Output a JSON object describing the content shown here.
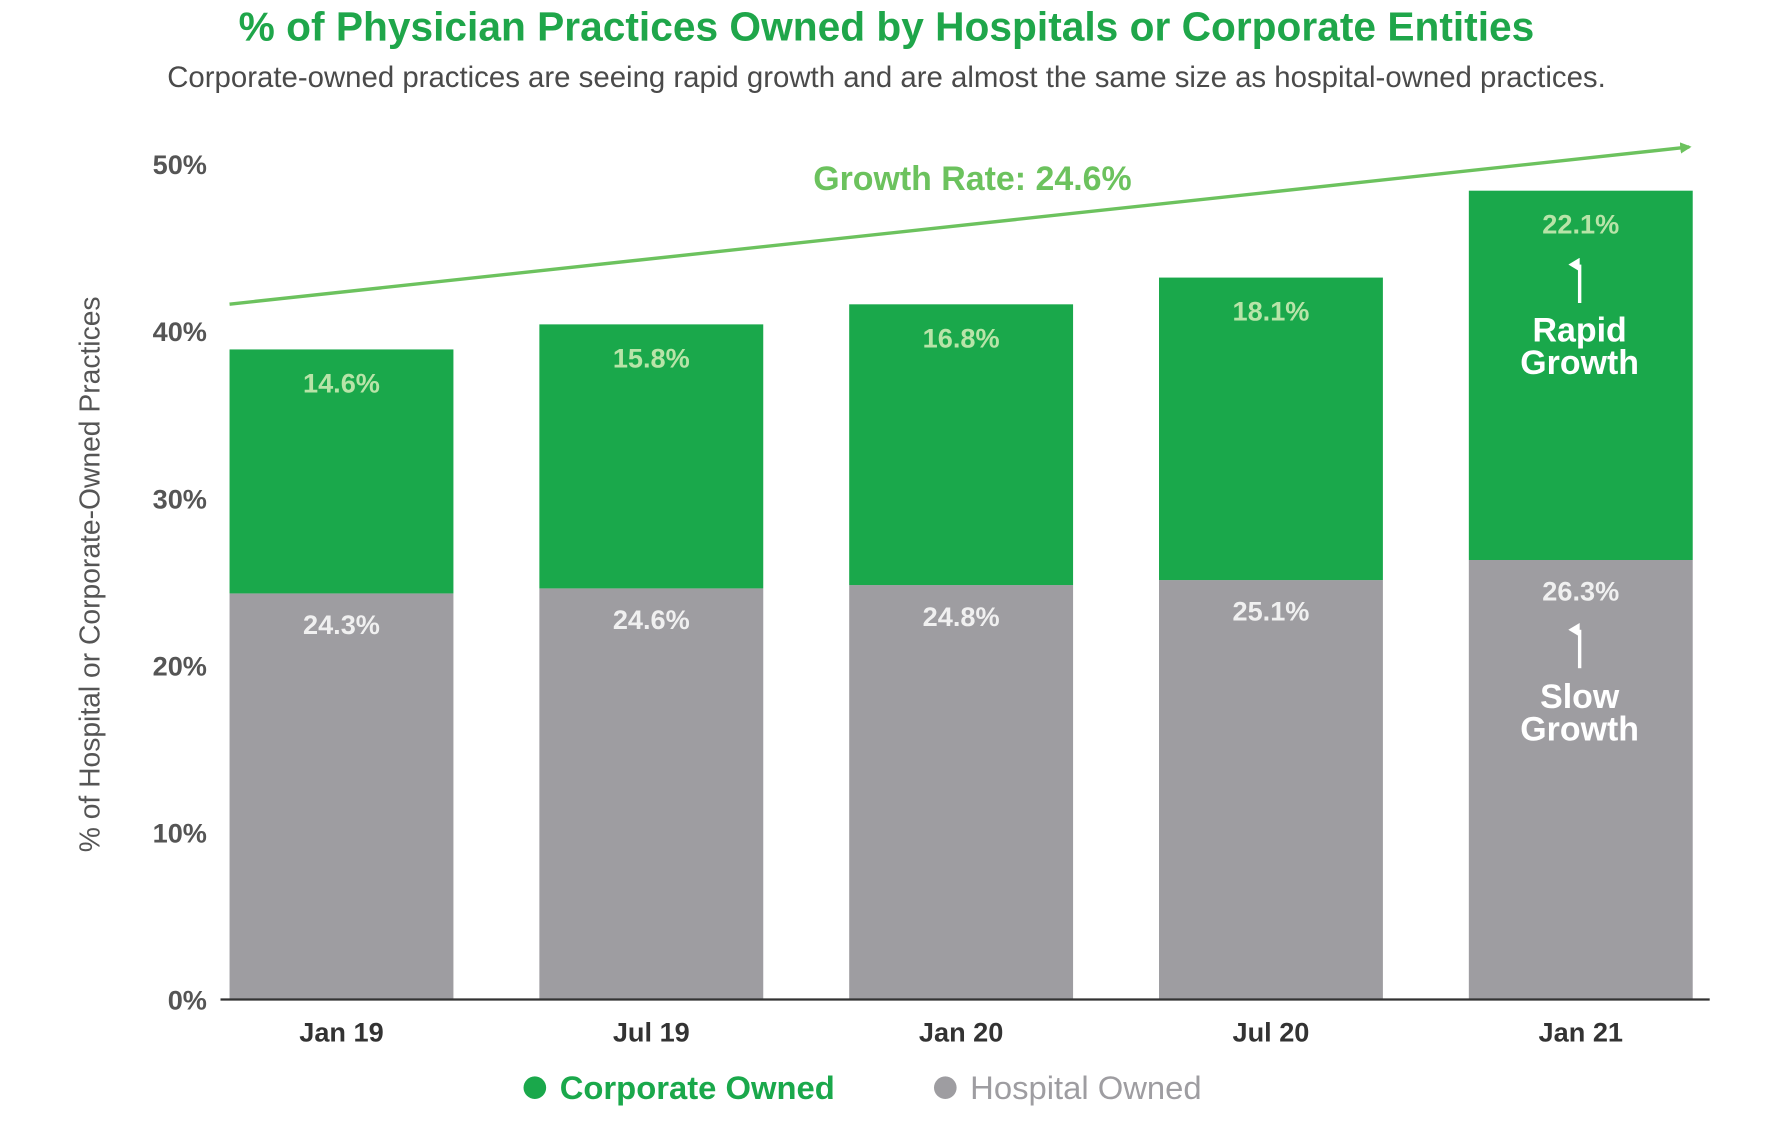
{
  "chart_data": {
    "type": "bar",
    "stacked": true,
    "title": "% of Physician Practices Owned by Hospitals or Corporate Entities",
    "subtitle": "Corporate-owned practices are seeing rapid growth and are almost the same size as hospital-owned practices.",
    "xlabel": "",
    "ylabel": "% of Hospital or Corporate-Owned Practices",
    "ylim": [
      0,
      50
    ],
    "yticks": [
      "0%",
      "10%",
      "20%",
      "30%",
      "40%",
      "50%"
    ],
    "ytick_values": [
      0,
      10,
      20,
      30,
      40,
      50
    ],
    "grid": false,
    "categories": [
      "Jan 19",
      "Jul 19",
      "Jan 20",
      "Jul 20",
      "Jan 21"
    ],
    "series": [
      {
        "name": "Hospital Owned",
        "values": [
          24.3,
          24.6,
          24.8,
          25.1,
          26.3
        ],
        "labels": [
          "24.3%",
          "24.6%",
          "24.8%",
          "25.1%",
          "26.3%"
        ],
        "color": "#9e9da1"
      },
      {
        "name": "Corporate Owned",
        "values": [
          14.6,
          15.8,
          16.8,
          18.1,
          22.1
        ],
        "labels": [
          "14.6%",
          "15.8%",
          "16.8%",
          "18.1%",
          "22.1%"
        ],
        "color": "#1aa84b"
      }
    ],
    "annotations": {
      "growth_rate": "Growth Rate: 24.6%",
      "rapid_line1": "Rapid",
      "rapid_line2": "Growth",
      "slow_line1": "Slow",
      "slow_line2": "Growth"
    },
    "legend": {
      "placement": "bottom",
      "items": [
        {
          "label": "Corporate Owned",
          "color": "#1aa84b"
        },
        {
          "label": "Hospital Owned",
          "color": "#9e9da1"
        }
      ]
    },
    "colors": {
      "title": "#1fa64a",
      "trend": "#6cc25e",
      "corporate_label": "#b8e4a8",
      "hospital_label": "#f0f0f0",
      "legend_hospital_text": "#9e9da1"
    }
  }
}
